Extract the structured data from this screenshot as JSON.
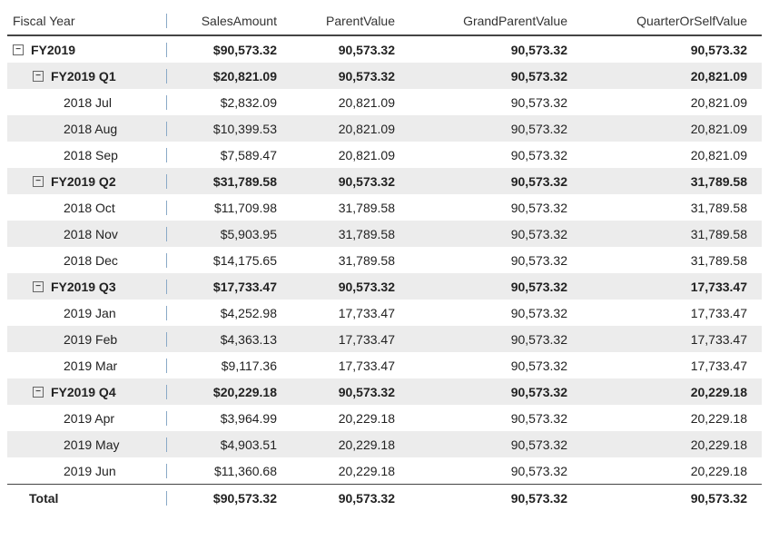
{
  "headers": {
    "label": "Fiscal Year",
    "sales": "SalesAmount",
    "parent": "ParentValue",
    "gp": "GrandParentValue",
    "qs": "QuarterOrSelfValue"
  },
  "rows": [
    {
      "level": 0,
      "bold": true,
      "expand": true,
      "label": "FY2019",
      "sales": "$90,573.32",
      "parent": "90,573.32",
      "gp": "90,573.32",
      "qs": "90,573.32"
    },
    {
      "level": 1,
      "bold": true,
      "expand": true,
      "label": "FY2019 Q1",
      "sales": "$20,821.09",
      "parent": "90,573.32",
      "gp": "90,573.32",
      "qs": "20,821.09"
    },
    {
      "level": 2,
      "bold": false,
      "expand": false,
      "label": "2018 Jul",
      "sales": "$2,832.09",
      "parent": "20,821.09",
      "gp": "90,573.32",
      "qs": "20,821.09"
    },
    {
      "level": 2,
      "bold": false,
      "expand": false,
      "label": "2018 Aug",
      "sales": "$10,399.53",
      "parent": "20,821.09",
      "gp": "90,573.32",
      "qs": "20,821.09"
    },
    {
      "level": 2,
      "bold": false,
      "expand": false,
      "label": "2018 Sep",
      "sales": "$7,589.47",
      "parent": "20,821.09",
      "gp": "90,573.32",
      "qs": "20,821.09"
    },
    {
      "level": 1,
      "bold": true,
      "expand": true,
      "label": "FY2019 Q2",
      "sales": "$31,789.58",
      "parent": "90,573.32",
      "gp": "90,573.32",
      "qs": "31,789.58"
    },
    {
      "level": 2,
      "bold": false,
      "expand": false,
      "label": "2018 Oct",
      "sales": "$11,709.98",
      "parent": "31,789.58",
      "gp": "90,573.32",
      "qs": "31,789.58"
    },
    {
      "level": 2,
      "bold": false,
      "expand": false,
      "label": "2018 Nov",
      "sales": "$5,903.95",
      "parent": "31,789.58",
      "gp": "90,573.32",
      "qs": "31,789.58"
    },
    {
      "level": 2,
      "bold": false,
      "expand": false,
      "label": "2018 Dec",
      "sales": "$14,175.65",
      "parent": "31,789.58",
      "gp": "90,573.32",
      "qs": "31,789.58"
    },
    {
      "level": 1,
      "bold": true,
      "expand": true,
      "label": "FY2019 Q3",
      "sales": "$17,733.47",
      "parent": "90,573.32",
      "gp": "90,573.32",
      "qs": "17,733.47"
    },
    {
      "level": 2,
      "bold": false,
      "expand": false,
      "label": "2019 Jan",
      "sales": "$4,252.98",
      "parent": "17,733.47",
      "gp": "90,573.32",
      "qs": "17,733.47"
    },
    {
      "level": 2,
      "bold": false,
      "expand": false,
      "label": "2019 Feb",
      "sales": "$4,363.13",
      "parent": "17,733.47",
      "gp": "90,573.32",
      "qs": "17,733.47"
    },
    {
      "level": 2,
      "bold": false,
      "expand": false,
      "label": "2019 Mar",
      "sales": "$9,117.36",
      "parent": "17,733.47",
      "gp": "90,573.32",
      "qs": "17,733.47"
    },
    {
      "level": 1,
      "bold": true,
      "expand": true,
      "label": "FY2019 Q4",
      "sales": "$20,229.18",
      "parent": "90,573.32",
      "gp": "90,573.32",
      "qs": "20,229.18"
    },
    {
      "level": 2,
      "bold": false,
      "expand": false,
      "label": "2019 Apr",
      "sales": "$3,964.99",
      "parent": "20,229.18",
      "gp": "90,573.32",
      "qs": "20,229.18"
    },
    {
      "level": 2,
      "bold": false,
      "expand": false,
      "label": "2019 May",
      "sales": "$4,903.51",
      "parent": "20,229.18",
      "gp": "90,573.32",
      "qs": "20,229.18"
    },
    {
      "level": 2,
      "bold": false,
      "expand": false,
      "label": "2019 Jun",
      "sales": "$11,360.68",
      "parent": "20,229.18",
      "gp": "90,573.32",
      "qs": "20,229.18"
    }
  ],
  "total": {
    "label": "Total",
    "sales": "$90,573.32",
    "parent": "90,573.32",
    "gp": "90,573.32",
    "qs": "90,573.32"
  }
}
